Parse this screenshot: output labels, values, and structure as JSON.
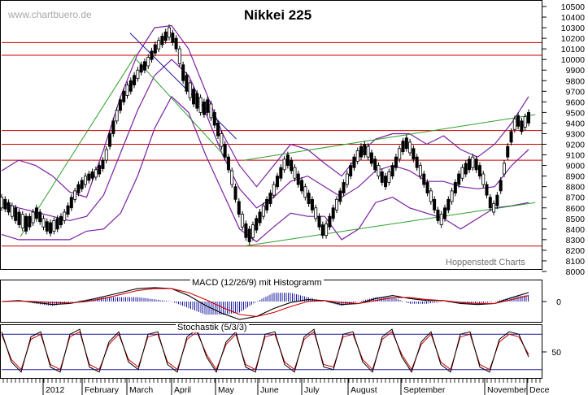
{
  "header": {
    "watermark": "www.chartbuero.de",
    "title": "Nikkei 225",
    "source": "Hoppenstedt Charts"
  },
  "panels": {
    "macd_label": "MACD (12/26/9) mit Histogramm",
    "stoch_label": "Stochastik (5/3/3)"
  },
  "colors": {
    "candle": "#000000",
    "band": "#7b1fa2",
    "trendline_green": "#2e9e2e",
    "trendline_blue": "#1a1aa0",
    "support_red": "#cc0000",
    "macd_line": "#000000",
    "signal_line": "#cc0000",
    "histogram": "#1a1aa0"
  },
  "chart_data": [
    {
      "type": "candlestick",
      "title": "Nikkei 225",
      "y_axis": {
        "position": "right",
        "range": [
          8000,
          10500
        ],
        "ticks": [
          8000,
          8100,
          8200,
          8300,
          8400,
          8500,
          8600,
          8700,
          8800,
          8900,
          9000,
          9100,
          9200,
          9300,
          9400,
          9500,
          9600,
          9700,
          9800,
          9900,
          10000,
          10100,
          10200,
          10300,
          10400,
          10500
        ]
      },
      "x_axis": {
        "labels": [
          "2012",
          "February",
          "March",
          "April",
          "May",
          "June",
          "July",
          "August",
          "September",
          "November",
          "Dece"
        ]
      },
      "horizontal_lines": [
        8240,
        9050,
        9200,
        9330,
        10040,
        10160
      ],
      "series": [
        {
          "name": "",
          "points": [
            [
              8700,
              8600
            ],
            [
              8680,
              8590
            ],
            [
              8650,
              8560
            ],
            [
              8620,
              8520
            ],
            [
              8600,
              8480
            ],
            [
              8560,
              8440
            ],
            [
              8540,
              8410
            ],
            [
              8520,
              8380
            ],
            [
              8520,
              8420
            ],
            [
              8560,
              8460
            ],
            [
              8600,
              8500
            ],
            [
              8560,
              8470
            ],
            [
              8500,
              8420
            ],
            [
              8470,
              8380
            ],
            [
              8460,
              8360
            ],
            [
              8480,
              8380
            ],
            [
              8500,
              8400
            ],
            [
              8520,
              8440
            ],
            [
              8560,
              8480
            ],
            [
              8620,
              8540
            ],
            [
              8700,
              8600
            ],
            [
              8760,
              8680
            ],
            [
              8820,
              8740
            ],
            [
              8860,
              8780
            ],
            [
              8900,
              8820
            ],
            [
              8920,
              8860
            ],
            [
              8940,
              8880
            ],
            [
              8960,
              8890
            ],
            [
              9000,
              8920
            ],
            [
              9050,
              8970
            ],
            [
              9150,
              9050
            ],
            [
              9300,
              9180
            ],
            [
              9420,
              9300
            ],
            [
              9520,
              9420
            ],
            [
              9620,
              9520
            ],
            [
              9700,
              9600
            ],
            [
              9760,
              9660
            ],
            [
              9800,
              9700
            ],
            [
              9850,
              9760
            ],
            [
              9900,
              9820
            ],
            [
              9950,
              9880
            ],
            [
              9980,
              9900
            ],
            [
              10020,
              9940
            ],
            [
              10080,
              10000
            ],
            [
              10140,
              10060
            ],
            [
              10180,
              10100
            ],
            [
              10220,
              10140
            ],
            [
              10260,
              10180
            ],
            [
              10300,
              10210
            ],
            [
              10250,
              10160
            ],
            [
              10200,
              10100
            ],
            [
              10100,
              9960
            ],
            [
              9950,
              9800
            ],
            [
              9850,
              9700
            ],
            [
              9780,
              9640
            ],
            [
              9720,
              9580
            ],
            [
              9680,
              9540
            ],
            [
              9640,
              9500
            ],
            [
              9600,
              9480
            ],
            [
              9620,
              9500
            ],
            [
              9580,
              9450
            ],
            [
              9500,
              9380
            ],
            [
              9400,
              9280
            ],
            [
              9300,
              9180
            ],
            [
              9200,
              9080
            ],
            [
              9080,
              8960
            ],
            [
              8950,
              8820
            ],
            [
              8800,
              8680
            ],
            [
              8660,
              8540
            ],
            [
              8540,
              8420
            ],
            [
              8450,
              8320
            ],
            [
              8400,
              8280
            ],
            [
              8440,
              8320
            ],
            [
              8500,
              8390
            ],
            [
              8560,
              8460
            ],
            [
              8620,
              8520
            ],
            [
              8680,
              8580
            ],
            [
              8740,
              8640
            ],
            [
              8820,
              8720
            ],
            [
              8900,
              8800
            ],
            [
              8980,
              8880
            ],
            [
              9060,
              8960
            ],
            [
              9100,
              9000
            ],
            [
              9050,
              8950
            ],
            [
              8980,
              8880
            ],
            [
              8920,
              8820
            ],
            [
              8860,
              8760
            ],
            [
              8800,
              8700
            ],
            [
              8740,
              8640
            ],
            [
              8680,
              8580
            ],
            [
              8600,
              8500
            ],
            [
              8520,
              8420
            ],
            [
              8440,
              8340
            ],
            [
              8450,
              8340
            ],
            [
              8520,
              8420
            ],
            [
              8600,
              8500
            ],
            [
              8680,
              8580
            ],
            [
              8760,
              8660
            ],
            [
              8840,
              8740
            ],
            [
              8920,
              8820
            ],
            [
              9000,
              8900
            ],
            [
              9080,
              8980
            ],
            [
              9140,
              9040
            ],
            [
              9180,
              9080
            ],
            [
              9200,
              9100
            ],
            [
              9180,
              9080
            ],
            [
              9120,
              9020
            ],
            [
              9060,
              8960
            ],
            [
              9000,
              8900
            ],
            [
              8940,
              8840
            ],
            [
              8900,
              8800
            ],
            [
              8940,
              8840
            ],
            [
              9000,
              8900
            ],
            [
              9080,
              8980
            ],
            [
              9160,
              9060
            ],
            [
              9230,
              9130
            ],
            [
              9260,
              9160
            ],
            [
              9220,
              9120
            ],
            [
              9160,
              9060
            ],
            [
              9080,
              8980
            ],
            [
              9000,
              8900
            ],
            [
              8920,
              8820
            ],
            [
              8840,
              8740
            ],
            [
              8760,
              8660
            ],
            [
              8680,
              8580
            ],
            [
              8580,
              8480
            ],
            [
              8540,
              8440
            ],
            [
              8600,
              8500
            ],
            [
              8680,
              8580
            ],
            [
              8760,
              8660
            ],
            [
              8840,
              8740
            ],
            [
              8920,
              8820
            ],
            [
              8980,
              8880
            ],
            [
              9020,
              8920
            ],
            [
              9060,
              8960
            ],
            [
              9080,
              8980
            ],
            [
              9060,
              8960
            ],
            [
              9000,
              8900
            ],
            [
              8920,
              8820
            ],
            [
              8820,
              8720
            ],
            [
              8700,
              8600
            ],
            [
              8640,
              8560
            ],
            [
              8720,
              8620
            ],
            [
              8860,
              8760
            ],
            [
              9020,
              8920
            ],
            [
              9180,
              9080
            ],
            [
              9320,
              9220
            ],
            [
              9440,
              9340
            ],
            [
              9470,
              9370
            ],
            [
              9420,
              9320
            ],
            [
              9460,
              9360
            ],
            [
              9500,
              9400
            ]
          ]
        }
      ],
      "bands": [
        {
          "name": "",
          "upper": [
            8950,
            9050,
            9000,
            8900,
            8750,
            8700,
            9150,
            9650,
            10050,
            10300,
            10320,
            10100,
            9700,
            9300,
            9000,
            8800,
            9000,
            9200,
            9150,
            9020,
            8900,
            9100,
            9250,
            9300,
            9300,
            9200,
            9280,
            9150,
            9080,
            9200,
            9400,
            9650
          ],
          "middle": [
            8650,
            8600,
            8560,
            8520,
            8480,
            8520,
            8720,
            9120,
            9520,
            9850,
            10000,
            9850,
            9500,
            9100,
            8780,
            8600,
            8700,
            8850,
            8900,
            8800,
            8700,
            8800,
            8950,
            9000,
            8950,
            8850,
            8850,
            8800,
            8780,
            8800,
            9000,
            9150
          ],
          "lower": [
            8350,
            8300,
            8300,
            8300,
            8300,
            8380,
            8400,
            8550,
            8900,
            9350,
            9650,
            9500,
            9100,
            8750,
            8400,
            8280,
            8420,
            8550,
            8520,
            8520,
            8300,
            8400,
            8650,
            8700,
            8600,
            8550,
            8500,
            8400,
            8500,
            8600,
            8620,
            8650
          ]
        }
      ],
      "trendlines": [
        {
          "color": "green",
          "from": [
            "2012-01-13",
            8330
          ],
          "to": [
            "2012-03-27",
            10050
          ]
        },
        {
          "color": "blue",
          "from": [
            "2012-03-23",
            10250
          ],
          "to": [
            "2012-05-30",
            9250
          ]
        },
        {
          "color": "green",
          "from": [
            "2012-06-04",
            9050
          ],
          "to": [
            "2012-12-07",
            9480
          ]
        },
        {
          "color": "green",
          "from": [
            "2012-06-04",
            8240
          ],
          "to": [
            "2012-12-07",
            8650
          ]
        },
        {
          "color": "green",
          "from": [
            "2012-03-27",
            10000
          ],
          "to": [
            "2012-05-25",
            9050
          ]
        }
      ],
      "grid": false
    },
    {
      "type": "line",
      "title": "MACD (12/26/9) mit Histogramm",
      "y_axis": {
        "position": "right",
        "ticks": [
          0
        ]
      },
      "series": [
        {
          "name": "MACD",
          "values": [
            0,
            0.1,
            -0.1,
            -0.3,
            -0.2,
            0.1,
            0.5,
            0.9,
            1.3,
            1.4,
            1.3,
            0.6,
            -0.4,
            -1.2,
            -1.8,
            -1.5,
            -0.7,
            -0.1,
            0.2,
            0.1,
            -0.3,
            -0.2,
            0.3,
            0.6,
            0.3,
            0.1,
            0.1,
            -0.2,
            -0.3,
            -0.2,
            0.4,
            0.9
          ]
        },
        {
          "name": "Signal",
          "values": [
            0,
            0.05,
            0,
            -0.1,
            -0.15,
            0,
            0.3,
            0.7,
            1.1,
            1.3,
            1.3,
            0.9,
            0.2,
            -0.6,
            -1.3,
            -1.5,
            -1.1,
            -0.5,
            0,
            0.1,
            -0.1,
            -0.2,
            0.1,
            0.4,
            0.4,
            0.2,
            0.1,
            -0.1,
            -0.2,
            -0.2,
            0.2,
            0.6
          ]
        }
      ]
    },
    {
      "type": "line",
      "title": "Stochastik (5/3/3)",
      "y_axis": {
        "position": "right",
        "ticks": [
          50
        ]
      },
      "series": [
        {
          "name": "%K",
          "values": [
            90,
            30,
            10,
            80,
            90,
            20,
            10,
            85,
            95,
            20,
            10,
            70,
            90,
            30,
            15,
            85,
            90,
            25,
            10,
            80,
            95,
            40,
            10,
            70,
            90,
            20,
            10,
            85,
            90,
            25,
            10,
            80,
            95,
            20,
            15,
            85,
            90,
            30,
            10,
            80,
            95,
            40,
            10,
            70,
            90,
            25,
            10,
            85,
            90,
            20,
            10,
            75,
            90,
            85,
            40
          ]
        },
        {
          "name": "%D",
          "values": [
            85,
            35,
            15,
            75,
            85,
            25,
            15,
            80,
            90,
            25,
            15,
            65,
            85,
            35,
            20,
            80,
            85,
            30,
            15,
            75,
            90,
            45,
            15,
            65,
            85,
            25,
            15,
            80,
            85,
            30,
            15,
            75,
            90,
            25,
            20,
            80,
            85,
            35,
            15,
            75,
            90,
            45,
            15,
            65,
            85,
            30,
            15,
            80,
            85,
            25,
            15,
            70,
            85,
            80,
            45
          ]
        }
      ],
      "horizontal_lines": [
        15,
        85
      ]
    }
  ]
}
